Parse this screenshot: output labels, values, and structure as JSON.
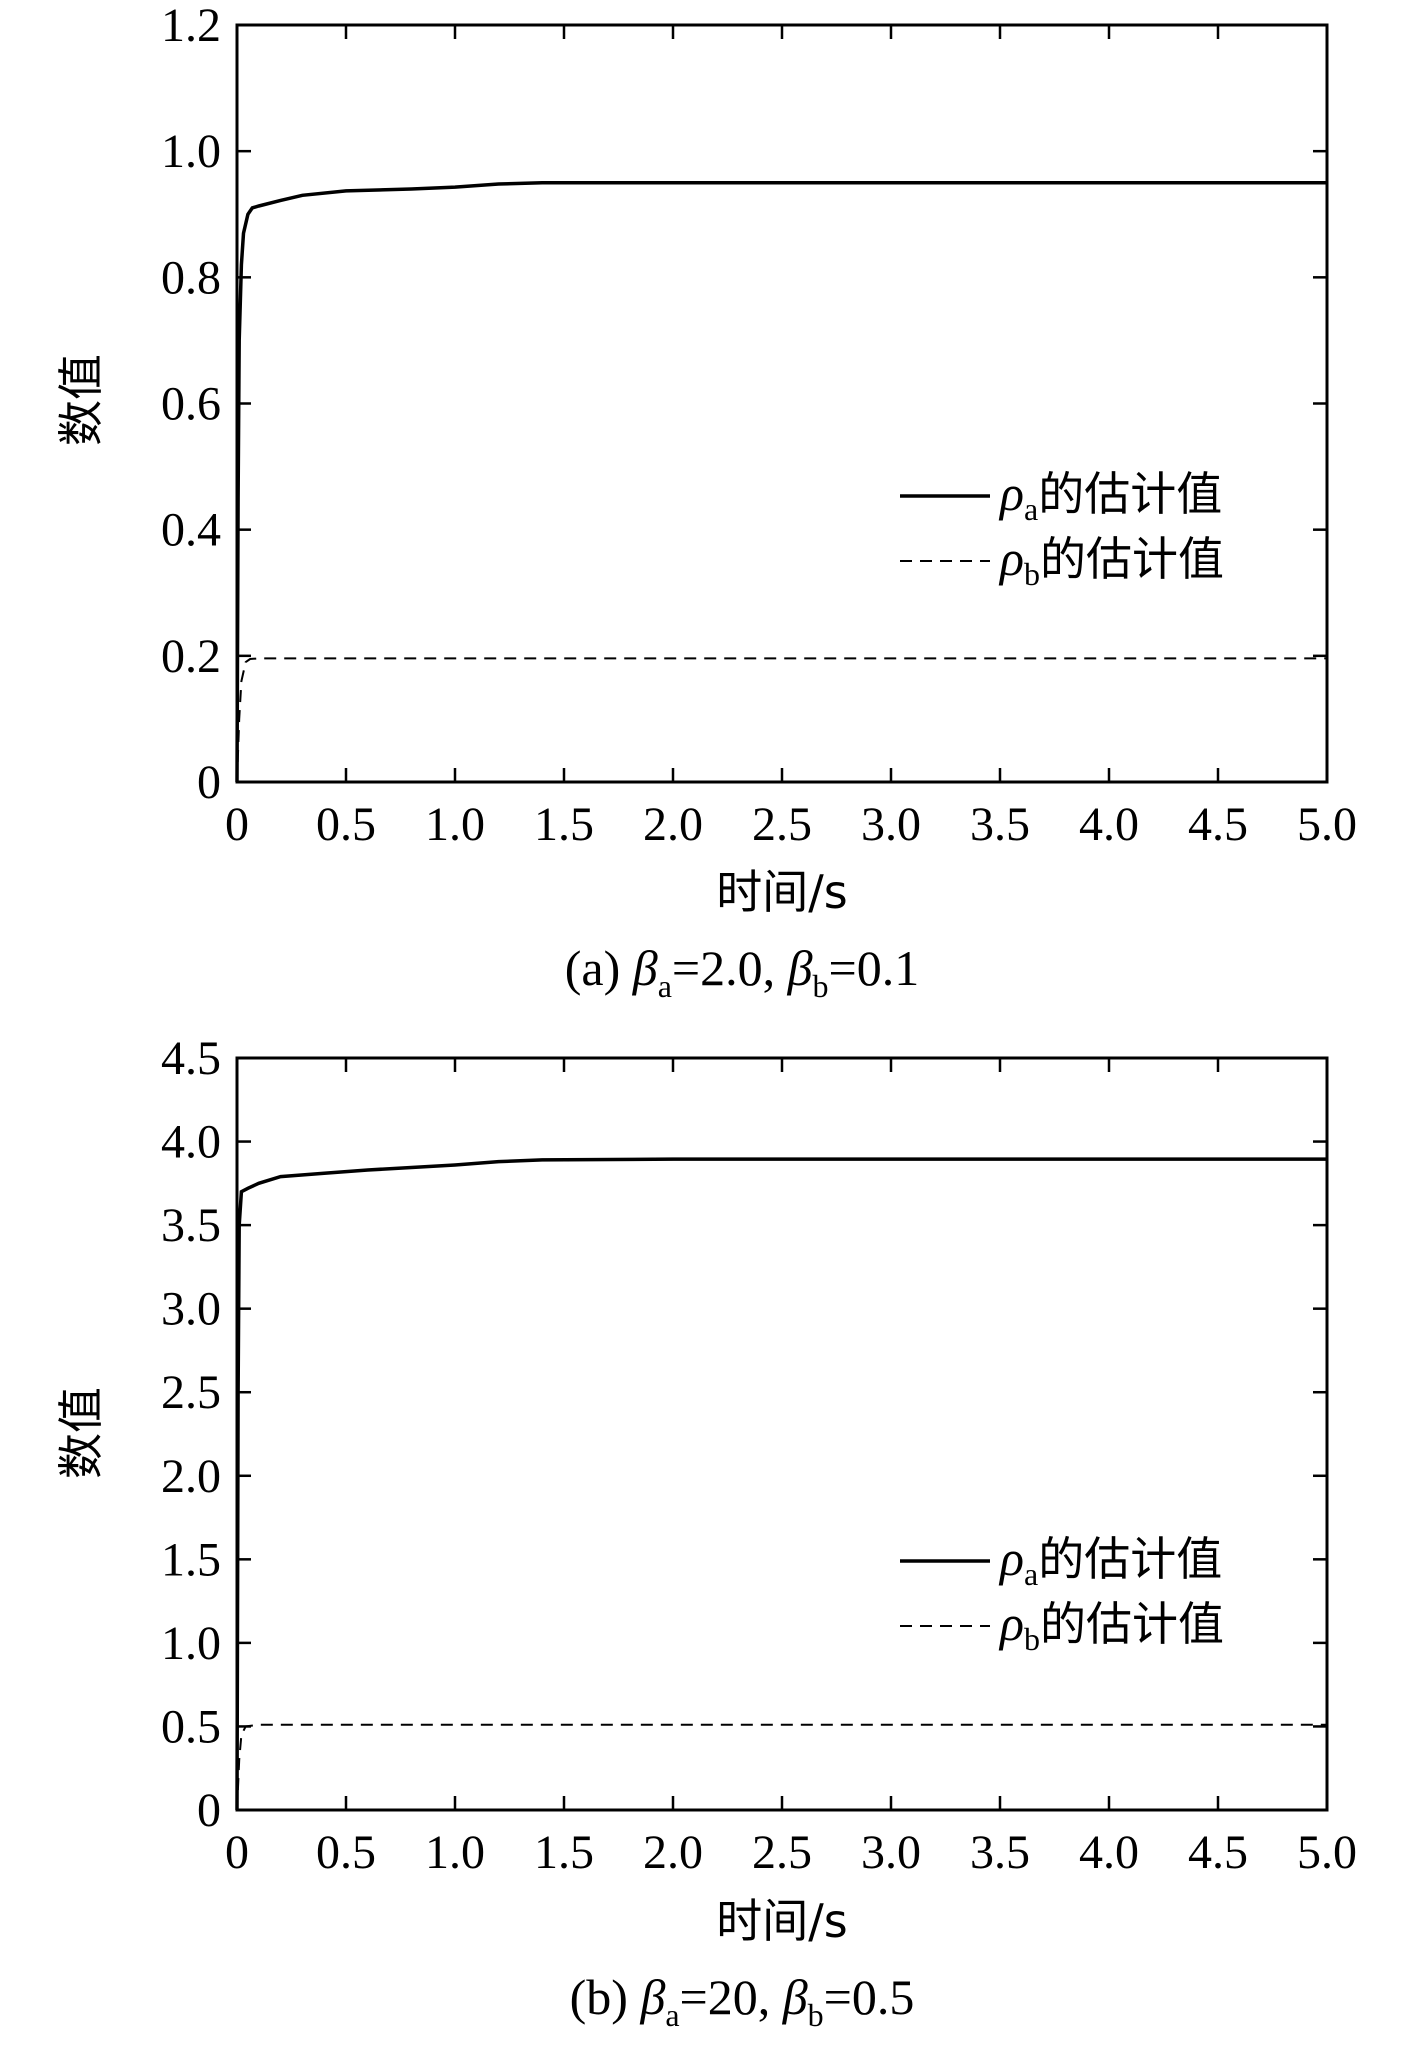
{
  "chart_data": [
    {
      "type": "line",
      "panel_caption": {
        "prefix": "(a) ",
        "sym1": "β",
        "sub1": "a",
        "eq1": "=2.0, ",
        "sym2": "β",
        "sub2": "b",
        "eq2": "=0.1"
      },
      "xlabel": "时间/s",
      "ylabel": "数值",
      "xlim": [
        0,
        5
      ],
      "ylim": [
        0,
        1.2
      ],
      "xticks": [
        0,
        0.5,
        1.0,
        1.5,
        2.0,
        2.5,
        3.0,
        3.5,
        4.0,
        4.5,
        5.0
      ],
      "xtick_labels": [
        "0",
        "0.5",
        "1.0",
        "1.5",
        "2.0",
        "2.5",
        "3.0",
        "3.5",
        "4.0",
        "4.5",
        "5.0"
      ],
      "yticks": [
        0,
        0.2,
        0.4,
        0.6,
        0.8,
        1.0,
        1.2
      ],
      "ytick_labels": [
        "0",
        "0.2",
        "0.4",
        "0.6",
        "0.8",
        "1.0",
        "1.2"
      ],
      "legend_position": "middle-right",
      "series": [
        {
          "symbol": "ρ",
          "sub": "a",
          "suffix": "的估计值",
          "style": "solid",
          "x": [
            0,
            0.005,
            0.01,
            0.02,
            0.03,
            0.05,
            0.07,
            0.1,
            0.2,
            0.3,
            0.5,
            0.8,
            1.0,
            1.2,
            1.4,
            2.0,
            3.0,
            4.0,
            5.0
          ],
          "y": [
            0,
            0.45,
            0.7,
            0.82,
            0.87,
            0.9,
            0.91,
            0.913,
            0.922,
            0.93,
            0.937,
            0.94,
            0.943,
            0.948,
            0.95,
            0.95,
            0.95,
            0.95,
            0.95
          ]
        },
        {
          "symbol": "ρ",
          "sub": "b",
          "suffix": "的估计值",
          "style": "dashed",
          "x": [
            0,
            0.01,
            0.02,
            0.04,
            0.06,
            0.1,
            1.0,
            2.0,
            3.0,
            4.0,
            5.0
          ],
          "y": [
            0,
            0.1,
            0.16,
            0.19,
            0.195,
            0.196,
            0.196,
            0.196,
            0.196,
            0.196,
            0.196
          ]
        }
      ]
    },
    {
      "type": "line",
      "panel_caption": {
        "prefix": "(b) ",
        "sym1": "β",
        "sub1": "a",
        "eq1": "=20, ",
        "sym2": "β",
        "sub2": "b",
        "eq2": "=0.5"
      },
      "xlabel": "时间/s",
      "ylabel": "数值",
      "xlim": [
        0,
        5
      ],
      "ylim": [
        0,
        4.5
      ],
      "xticks": [
        0,
        0.5,
        1.0,
        1.5,
        2.0,
        2.5,
        3.0,
        3.5,
        4.0,
        4.5,
        5.0
      ],
      "xtick_labels": [
        "0",
        "0.5",
        "1.0",
        "1.5",
        "2.0",
        "2.5",
        "3.0",
        "3.5",
        "4.0",
        "4.5",
        "5.0"
      ],
      "yticks": [
        0,
        0.5,
        1.0,
        1.5,
        2.0,
        2.5,
        3.0,
        3.5,
        4.0,
        4.5
      ],
      "ytick_labels": [
        "0",
        "0.5",
        "1.0",
        "1.5",
        "2.0",
        "2.5",
        "3.0",
        "3.5",
        "4.0",
        "4.5"
      ],
      "legend_position": "middle-right",
      "series": [
        {
          "symbol": "ρ",
          "sub": "a",
          "suffix": "的估计值",
          "style": "solid",
          "x": [
            0,
            0.005,
            0.01,
            0.02,
            0.05,
            0.1,
            0.2,
            0.4,
            0.6,
            0.8,
            1.0,
            1.2,
            1.4,
            2.0,
            3.0,
            4.0,
            5.0
          ],
          "y": [
            0,
            2.5,
            3.5,
            3.7,
            3.72,
            3.75,
            3.79,
            3.81,
            3.83,
            3.845,
            3.86,
            3.88,
            3.89,
            3.895,
            3.895,
            3.895,
            3.895
          ]
        },
        {
          "symbol": "ρ",
          "sub": "b",
          "suffix": "的估计值",
          "style": "dashed",
          "x": [
            0,
            0.01,
            0.02,
            0.04,
            0.1,
            1.0,
            2.0,
            3.0,
            4.0,
            5.0
          ],
          "y": [
            0,
            0.3,
            0.45,
            0.5,
            0.51,
            0.51,
            0.51,
            0.51,
            0.51,
            0.51
          ]
        }
      ]
    }
  ]
}
